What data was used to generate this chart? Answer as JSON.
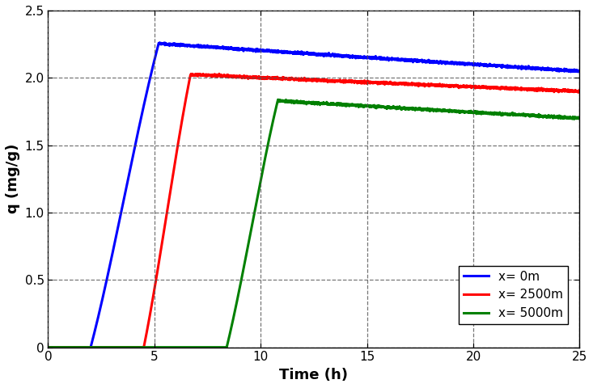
{
  "title": "",
  "xlabel": "Time (h)",
  "ylabel": "q (mg/g)",
  "xlim": [
    0,
    25
  ],
  "ylim": [
    0,
    2.5
  ],
  "xticks": [
    0,
    5,
    10,
    15,
    20,
    25
  ],
  "yticks": [
    0,
    0.5,
    1.0,
    1.5,
    2.0,
    2.5
  ],
  "legend_labels": [
    "x= 0m",
    "x= 2500m",
    "x= 5000m"
  ],
  "line_colors": [
    "blue",
    "red",
    "green"
  ],
  "line_width": 2.2,
  "background_color": "#ffffff",
  "series": {
    "blue": {
      "t_rise_start": 2.0,
      "t_rise_end": 5.2,
      "peak": 2.255,
      "t_end": 25.0,
      "val_at_end": 2.05
    },
    "red": {
      "t_rise_start": 4.5,
      "t_rise_end": 6.7,
      "peak": 2.025,
      "t_end": 25.0,
      "val_at_end": 1.9
    },
    "green": {
      "t_rise_start": 8.4,
      "t_rise_end": 10.8,
      "peak": 1.83,
      "t_end": 25.0,
      "val_at_end": 1.7
    }
  }
}
